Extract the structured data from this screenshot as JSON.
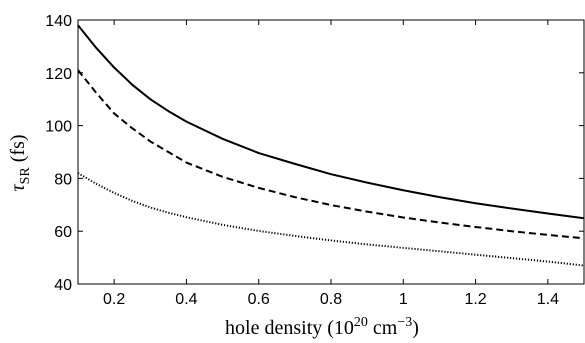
{
  "chart_data": {
    "type": "line",
    "xlabel": {
      "main": "hole density (10",
      "exp": "20",
      "unit": " cm",
      "unit_exp": "−3",
      "tail": ")"
    },
    "ylabel": {
      "symbol": "τ",
      "subscript": "SR",
      "tail": " (fs)"
    },
    "xlim": [
      0.1,
      1.5
    ],
    "ylim": [
      40,
      140
    ],
    "xticks": [
      0.2,
      0.4,
      0.6,
      0.8,
      1,
      1.2,
      1.4
    ],
    "xtick_labels": [
      "0.2",
      "0.4",
      "0.6",
      "0.8",
      "1",
      "1.2",
      "1.4"
    ],
    "yticks": [
      40,
      60,
      80,
      100,
      120,
      140
    ],
    "ytick_labels": [
      "40",
      "60",
      "80",
      "100",
      "120",
      "140"
    ],
    "grid": false,
    "x": [
      0.1,
      0.15,
      0.2,
      0.25,
      0.3,
      0.35,
      0.4,
      0.5,
      0.6,
      0.7,
      0.8,
      0.9,
      1.0,
      1.1,
      1.2,
      1.3,
      1.4,
      1.5
    ],
    "series": [
      {
        "style": "solid",
        "color": "#000000",
        "values": [
          138,
          129.5,
          122,
          115.5,
          110,
          105.5,
          101.5,
          95,
          89.6,
          85.5,
          81.6,
          78.4,
          75.5,
          72.9,
          70.6,
          68.6,
          66.7,
          64.9
        ]
      },
      {
        "style": "dashed",
        "color": "#000000",
        "values": [
          121,
          112.5,
          104.6,
          99,
          94,
          90,
          86,
          80.6,
          76.4,
          72.9,
          69.9,
          67.4,
          65.2,
          63.3,
          61.6,
          60,
          58.6,
          57.3
        ]
      },
      {
        "style": "dotted",
        "color": "#000000",
        "values": [
          82,
          78,
          74.5,
          71.5,
          69,
          67,
          65.3,
          62.4,
          60.1,
          58.2,
          56.5,
          55,
          53.7,
          52.4,
          51.1,
          49.8,
          48.5,
          47
        ]
      }
    ]
  }
}
